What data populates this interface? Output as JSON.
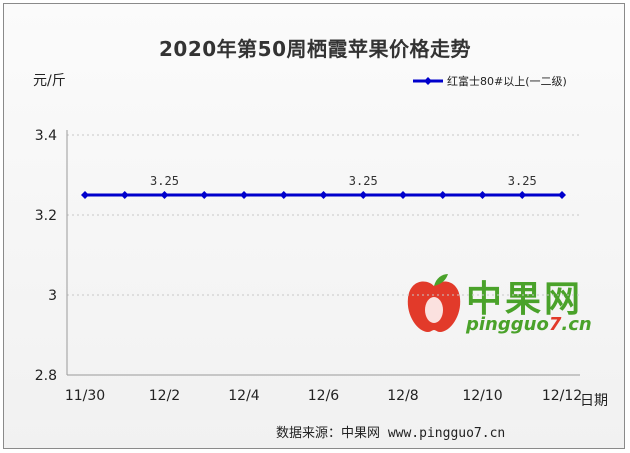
{
  "chart_data": {
    "type": "line",
    "title": "2020年第50周栖霞苹果价格走势",
    "ylabel": "元/斤",
    "xlabel": "日期",
    "ylim": [
      2.8,
      3.4
    ],
    "yticks": [
      "2.8",
      "3",
      "3.2",
      "3.4"
    ],
    "ytick_values": [
      2.8,
      3.0,
      3.2,
      3.4
    ],
    "xtick_labels": [
      "11/30",
      "12/2",
      "12/4",
      "12/6",
      "12/8",
      "12/10",
      "12/12"
    ],
    "x": [
      "11/30",
      "12/1",
      "12/2",
      "12/3",
      "12/4",
      "12/5",
      "12/6",
      "12/7",
      "12/8",
      "12/9",
      "12/10",
      "12/11",
      "12/12"
    ],
    "series": [
      {
        "name": "红富士80#以上(一二级)",
        "values": [
          3.25,
          3.25,
          3.25,
          3.25,
          3.25,
          3.25,
          3.25,
          3.25,
          3.25,
          3.25,
          3.25,
          3.25,
          3.25
        ],
        "color": "#0000cc"
      }
    ],
    "data_labels": [
      {
        "index": 2,
        "text": "3.25"
      },
      {
        "index": 7,
        "text": "3.25"
      },
      {
        "index": 11,
        "text": "3.25"
      }
    ],
    "grid": "horizontal",
    "legend_position": "top-right"
  },
  "watermark": {
    "name": "中果网",
    "url_prefix": "pingguo",
    "url_num": "7",
    "url_suffix": ".cn"
  },
  "source": "数据来源：中果网 www.pingguo7.cn"
}
